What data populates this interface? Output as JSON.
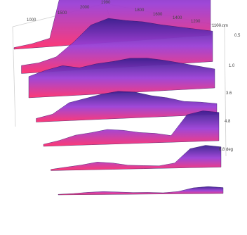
{
  "chart_data": {
    "type": "surface",
    "title": "",
    "x_axis": {
      "label": "",
      "ticks": [
        "1000",
        "1500",
        "2000",
        "1990",
        "1800",
        "1600",
        "1400",
        "1200"
      ],
      "unit_label": "1100 nm"
    },
    "z_axis": {
      "label": "",
      "ticks": [
        "0.5",
        "1.0",
        "3.6",
        "4.8",
        "6.8"
      ],
      "unit_label": "6.8 deg"
    },
    "colors": {
      "high": "#3a1f8f",
      "mid": "#9b3fd6",
      "low": "#ff2f6e",
      "box": "#cfcfcf"
    },
    "ridges": [
      {
        "offset": 0.0,
        "values": [
          0.02,
          0.05,
          0.1,
          0.95,
          0.98,
          0.99,
          0.98,
          0.97,
          0.95,
          0.94,
          0.92,
          0.9
        ]
      },
      {
        "offset": 0.15,
        "values": [
          0.1,
          0.12,
          0.18,
          0.35,
          0.55,
          0.62,
          0.58,
          0.55,
          0.5,
          0.46,
          0.42,
          0.38
        ]
      },
      {
        "offset": 0.3,
        "values": [
          0.28,
          0.35,
          0.4,
          0.36,
          0.4,
          0.42,
          0.45,
          0.44,
          0.4,
          0.35,
          0.3,
          0.25
        ]
      },
      {
        "offset": 0.45,
        "values": [
          0.05,
          0.1,
          0.25,
          0.3,
          0.35,
          0.38,
          0.36,
          0.3,
          0.26,
          0.2,
          0.18,
          0.15
        ]
      },
      {
        "offset": 0.6,
        "values": [
          0.03,
          0.08,
          0.15,
          0.18,
          0.22,
          0.2,
          0.16,
          0.14,
          0.1,
          0.4,
          0.45,
          0.42
        ]
      },
      {
        "offset": 0.75,
        "values": [
          0.02,
          0.05,
          0.08,
          0.12,
          0.1,
          0.06,
          0.05,
          0.04,
          0.08,
          0.3,
          0.35,
          0.32
        ]
      },
      {
        "offset": 0.9,
        "values": [
          0.01,
          0.02,
          0.04,
          0.05,
          0.04,
          0.03,
          0.03,
          0.02,
          0.04,
          0.1,
          0.12,
          0.1
        ]
      }
    ]
  }
}
